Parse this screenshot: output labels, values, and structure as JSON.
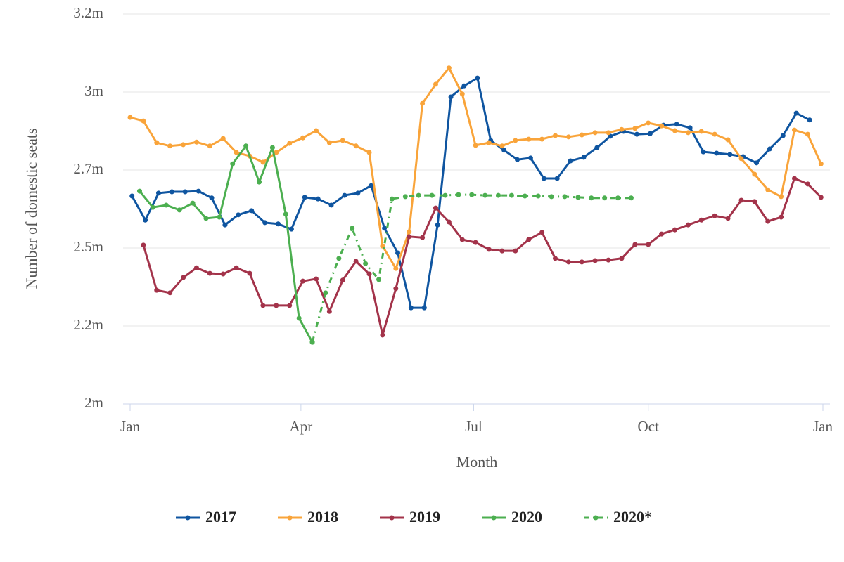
{
  "chart_data": {
    "type": "line",
    "xlabel": "Month",
    "ylabel": "Number of domestic seats",
    "xlim": [
      0,
      365
    ],
    "xticks": [
      {
        "value": 0,
        "label": "Jan"
      },
      {
        "value": 90,
        "label": "Apr"
      },
      {
        "value": 181,
        "label": "Jul"
      },
      {
        "value": 273,
        "label": "Oct"
      },
      {
        "value": 365,
        "label": "Jan"
      }
    ],
    "ylim": [
      2,
      3.2
    ],
    "yticks": [
      {
        "value": 2,
        "label": "2m"
      },
      {
        "value": 2.24,
        "label": "2.2m"
      },
      {
        "value": 2.48,
        "label": "2.5m"
      },
      {
        "value": 2.72,
        "label": "2.7m"
      },
      {
        "value": 2.96,
        "label": "3m"
      },
      {
        "value": 3.2,
        "label": "3.2m"
      }
    ],
    "grid": true,
    "legend": "bottom",
    "series": [
      {
        "name": "2017",
        "color": "#0f55a0",
        "line_style": "solid",
        "x": [
          1,
          8,
          15,
          22,
          29,
          36,
          43,
          50,
          57,
          64,
          71,
          78,
          85,
          92,
          99,
          106,
          113,
          120,
          127,
          134,
          141,
          148,
          155,
          162,
          169,
          176,
          183,
          190,
          197,
          204,
          211,
          218,
          225,
          232,
          239,
          246,
          253,
          260,
          267,
          274,
          281,
          288,
          295,
          302,
          309,
          316,
          323,
          330,
          337,
          344,
          351,
          358
        ],
        "values": [
          2.64,
          2.566,
          2.649,
          2.653,
          2.653,
          2.655,
          2.634,
          2.551,
          2.582,
          2.595,
          2.558,
          2.554,
          2.538,
          2.636,
          2.631,
          2.612,
          2.642,
          2.649,
          2.672,
          2.541,
          2.465,
          2.296,
          2.296,
          2.551,
          2.945,
          2.979,
          3.003,
          2.811,
          2.781,
          2.752,
          2.757,
          2.694,
          2.694,
          2.748,
          2.759,
          2.789,
          2.824,
          2.839,
          2.83,
          2.832,
          2.858,
          2.861,
          2.85,
          2.776,
          2.772,
          2.768,
          2.761,
          2.742,
          2.785,
          2.826,
          2.895,
          2.874
        ]
      },
      {
        "name": "2018",
        "color": "#f9a43a",
        "line_style": "solid",
        "x": [
          0,
          7,
          14,
          21,
          28,
          35,
          42,
          49,
          56,
          63,
          70,
          77,
          84,
          91,
          98,
          105,
          112,
          119,
          126,
          133,
          140,
          147,
          154,
          161,
          168,
          175,
          182,
          189,
          196,
          203,
          210,
          217,
          224,
          231,
          238,
          245,
          252,
          259,
          266,
          273,
          280,
          287,
          294,
          301,
          308,
          315,
          322,
          329,
          336,
          343,
          350,
          357,
          364
        ],
        "values": [
          2.882,
          2.871,
          2.804,
          2.794,
          2.798,
          2.806,
          2.794,
          2.817,
          2.774,
          2.763,
          2.744,
          2.774,
          2.802,
          2.819,
          2.841,
          2.804,
          2.811,
          2.794,
          2.774,
          2.486,
          2.417,
          2.53,
          2.925,
          2.984,
          3.034,
          2.954,
          2.796,
          2.804,
          2.794,
          2.811,
          2.815,
          2.815,
          2.826,
          2.822,
          2.828,
          2.835,
          2.835,
          2.845,
          2.848,
          2.865,
          2.856,
          2.841,
          2.835,
          2.839,
          2.83,
          2.813,
          2.755,
          2.707,
          2.659,
          2.638,
          2.843,
          2.83,
          2.739
        ]
      },
      {
        "name": "2019",
        "color": "#a3334a",
        "line_style": "solid",
        "x": [
          7,
          14,
          21,
          28,
          35,
          42,
          49,
          56,
          63,
          70,
          77,
          84,
          91,
          98,
          105,
          112,
          119,
          126,
          133,
          140,
          147,
          154,
          161,
          168,
          175,
          182,
          189,
          196,
          203,
          210,
          217,
          224,
          231,
          238,
          245,
          252,
          259,
          266,
          273,
          280,
          287,
          294,
          301,
          308,
          315,
          322,
          329,
          336,
          343,
          350,
          357,
          364
        ],
        "values": [
          2.489,
          2.35,
          2.342,
          2.389,
          2.419,
          2.402,
          2.4,
          2.419,
          2.402,
          2.303,
          2.303,
          2.303,
          2.378,
          2.385,
          2.285,
          2.381,
          2.439,
          2.4,
          2.212,
          2.355,
          2.515,
          2.512,
          2.603,
          2.56,
          2.506,
          2.497,
          2.476,
          2.471,
          2.471,
          2.506,
          2.528,
          2.448,
          2.437,
          2.437,
          2.441,
          2.443,
          2.448,
          2.491,
          2.491,
          2.523,
          2.536,
          2.551,
          2.566,
          2.579,
          2.571,
          2.627,
          2.623,
          2.562,
          2.575,
          2.694,
          2.677,
          2.636
        ]
      },
      {
        "name": "2020",
        "color": "#4caf50",
        "line_style": "solid",
        "x": [
          5,
          12,
          19,
          26,
          33,
          40,
          47,
          54,
          61,
          68,
          75,
          82,
          89,
          96
        ],
        "values": [
          2.655,
          2.605,
          2.612,
          2.597,
          2.618,
          2.571,
          2.575,
          2.739,
          2.794,
          2.683,
          2.789,
          2.584,
          2.264,
          2.19
        ]
      },
      {
        "name": "2020*",
        "color": "#4caf50",
        "line_style": "dashed",
        "x": [
          96,
          103,
          110,
          117,
          124,
          131,
          138,
          145,
          152,
          159,
          166,
          173,
          180,
          187,
          194,
          201,
          208,
          215,
          222,
          229,
          236,
          243,
          250,
          257,
          264
        ],
        "values": [
          2.19,
          2.342,
          2.448,
          2.541,
          2.432,
          2.383,
          2.631,
          2.638,
          2.642,
          2.642,
          2.642,
          2.644,
          2.644,
          2.642,
          2.642,
          2.642,
          2.64,
          2.64,
          2.638,
          2.638,
          2.636,
          2.634,
          2.634,
          2.634,
          2.634
        ]
      }
    ]
  }
}
